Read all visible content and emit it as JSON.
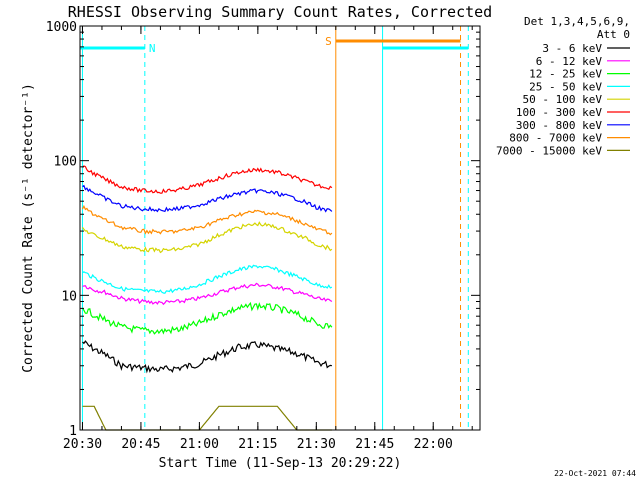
{
  "chart_data": {
    "type": "line",
    "title": "RHESSI Observing Summary Count Rates, Corrected",
    "xlabel": "Start Time (11-Sep-13 20:29:22)",
    "ylabel": "Corrected Count Rate (s⁻¹ detector⁻¹)",
    "y_scale": "log",
    "ylim": [
      1,
      1000
    ],
    "xlim": [
      "20:29:22",
      "22:12:00"
    ],
    "x_ticks": [
      "20:30",
      "20:45",
      "21:00",
      "21:15",
      "21:30",
      "21:45",
      "22:00"
    ],
    "y_ticks": [
      "1",
      "10",
      "100",
      "1000"
    ],
    "legend_header": [
      "Det 1,3,4,5,6,9,",
      "Att 0"
    ],
    "legend_position": "right",
    "series": [
      {
        "name": "3 - 6 keV",
        "color": "#000000",
        "x": [
          "20:30",
          "20:33",
          "20:36",
          "20:40",
          "20:45",
          "20:50",
          "20:55",
          "21:00",
          "21:05",
          "21:10",
          "21:15",
          "21:20",
          "21:25",
          "21:28",
          "21:30",
          "21:32",
          "21:34"
        ],
        "y": [
          4.5,
          4.0,
          3.6,
          3.0,
          2.9,
          2.8,
          2.9,
          3.1,
          3.6,
          4.1,
          4.3,
          4.0,
          3.7,
          3.4,
          3.2,
          3.1,
          3.0
        ]
      },
      {
        "name": "6 - 12 keV",
        "color": "#ff00ff",
        "x": [
          "20:30",
          "20:33",
          "20:36",
          "20:40",
          "20:45",
          "20:50",
          "20:55",
          "21:00",
          "21:05",
          "21:10",
          "21:15",
          "21:20",
          "21:25",
          "21:28",
          "21:30",
          "21:32",
          "21:34"
        ],
        "y": [
          12,
          11,
          10.5,
          9.5,
          9.0,
          8.8,
          9.0,
          9.5,
          10.5,
          11.5,
          12,
          11.5,
          10.5,
          10,
          9.5,
          9.2,
          9.0
        ]
      },
      {
        "name": "12 - 25 keV",
        "color": "#00ff00",
        "x": [
          "20:30",
          "20:33",
          "20:36",
          "20:40",
          "20:45",
          "20:50",
          "20:55",
          "21:00",
          "21:05",
          "21:10",
          "21:15",
          "21:20",
          "21:25",
          "21:28",
          "21:30",
          "21:32",
          "21:34"
        ],
        "y": [
          8,
          7.2,
          6.5,
          5.8,
          5.5,
          5.4,
          5.6,
          6.2,
          7.2,
          8.0,
          8.4,
          8.0,
          7.2,
          6.6,
          6.2,
          6.0,
          5.8
        ]
      },
      {
        "name": "25 - 50 keV",
        "color": "#00ffff",
        "x": [
          "20:30",
          "20:33",
          "20:36",
          "20:40",
          "20:45",
          "20:50",
          "20:55",
          "21:00",
          "21:05",
          "21:10",
          "21:15",
          "21:20",
          "21:25",
          "21:28",
          "21:30",
          "21:32",
          "21:34"
        ],
        "y": [
          15,
          13.5,
          12.5,
          11.2,
          10.8,
          10.6,
          11.0,
          12.0,
          13.8,
          15.5,
          16.5,
          15.5,
          13.8,
          12.8,
          12.0,
          11.8,
          11.5
        ]
      },
      {
        "name": "50 - 100 keV",
        "color": "#d4d400",
        "x": [
          "20:30",
          "20:33",
          "20:36",
          "20:40",
          "20:45",
          "20:50",
          "20:55",
          "21:00",
          "21:05",
          "21:10",
          "21:15",
          "21:20",
          "21:25",
          "21:28",
          "21:30",
          "21:32",
          "21:34"
        ],
        "y": [
          31,
          28,
          26,
          23,
          22,
          21.5,
          22,
          24,
          28,
          32,
          34,
          32,
          28,
          26,
          24,
          23,
          22
        ]
      },
      {
        "name": "100 - 300 keV",
        "color": "#ff0000",
        "x": [
          "20:30",
          "20:33",
          "20:36",
          "20:40",
          "20:45",
          "20:50",
          "20:55",
          "21:00",
          "21:05",
          "21:10",
          "21:15",
          "21:20",
          "21:25",
          "21:28",
          "21:30",
          "21:32",
          "21:34"
        ],
        "y": [
          90,
          80,
          72,
          64,
          60,
          59,
          61,
          66,
          74,
          82,
          86,
          82,
          74,
          69,
          66,
          64,
          63
        ]
      },
      {
        "name": "300 - 800 keV",
        "color": "#0000ff",
        "x": [
          "20:30",
          "20:33",
          "20:36",
          "20:40",
          "20:45",
          "20:50",
          "20:55",
          "21:00",
          "21:05",
          "21:10",
          "21:15",
          "21:20",
          "21:25",
          "21:28",
          "21:30",
          "21:32",
          "21:34"
        ],
        "y": [
          65,
          58,
          52,
          46,
          44,
          43,
          44,
          47,
          52,
          57,
          60,
          57,
          52,
          48,
          45,
          43,
          42
        ]
      },
      {
        "name": "800 - 7000 keV",
        "color": "#ff8c00",
        "x": [
          "20:30",
          "20:33",
          "20:36",
          "20:40",
          "20:45",
          "20:50",
          "20:55",
          "21:00",
          "21:05",
          "21:10",
          "21:15",
          "21:20",
          "21:25",
          "21:28",
          "21:30",
          "21:32",
          "21:34"
        ],
        "y": [
          45,
          40,
          36,
          32,
          30,
          29.5,
          30,
          32,
          36,
          40,
          42,
          40,
          36,
          33,
          31,
          30,
          29
        ]
      },
      {
        "name": "7000 - 15000 keV",
        "color": "#808000",
        "x": [
          "20:30",
          "20:33",
          "20:36",
          "20:40",
          "20:45",
          "20:50",
          "20:55",
          "21:00",
          "21:05",
          "21:10",
          "21:15",
          "21:20",
          "21:25",
          "21:28",
          "21:30",
          "21:32",
          "21:34"
        ],
        "y": [
          1.5,
          1.5,
          1.0,
          1.0,
          1.0,
          1.0,
          1.0,
          1.0,
          1.5,
          1.5,
          1.5,
          1.5,
          1.0,
          1.0,
          1.0,
          1.0,
          1.0
        ]
      }
    ],
    "annotations": [
      {
        "label": "N",
        "type": "flag-bar",
        "color": "#00ffff",
        "start": "20:29:22",
        "end": "20:46:00"
      },
      {
        "label": "S",
        "type": "flag-bar",
        "color": "#ff8c00",
        "start": "21:35:00",
        "end": "22:07:00"
      },
      {
        "label": "",
        "type": "flag-bar",
        "color": "#00ffff",
        "start": "21:47:00",
        "end": "22:09:00"
      }
    ],
    "vertical_markers": [
      {
        "time": "20:30",
        "color": "#00ffff",
        "style": "solid"
      },
      {
        "time": "20:46",
        "color": "#00ffff",
        "style": "dashed"
      },
      {
        "time": "21:35",
        "color": "#ff8c00",
        "style": "solid"
      },
      {
        "time": "21:47",
        "color": "#00ffff",
        "style": "solid"
      },
      {
        "time": "22:07",
        "color": "#ff8c00",
        "style": "dashed"
      },
      {
        "time": "22:09",
        "color": "#00ffff",
        "style": "dashed"
      }
    ]
  },
  "footer_timestamp": "22-Oct-2021 07:44"
}
